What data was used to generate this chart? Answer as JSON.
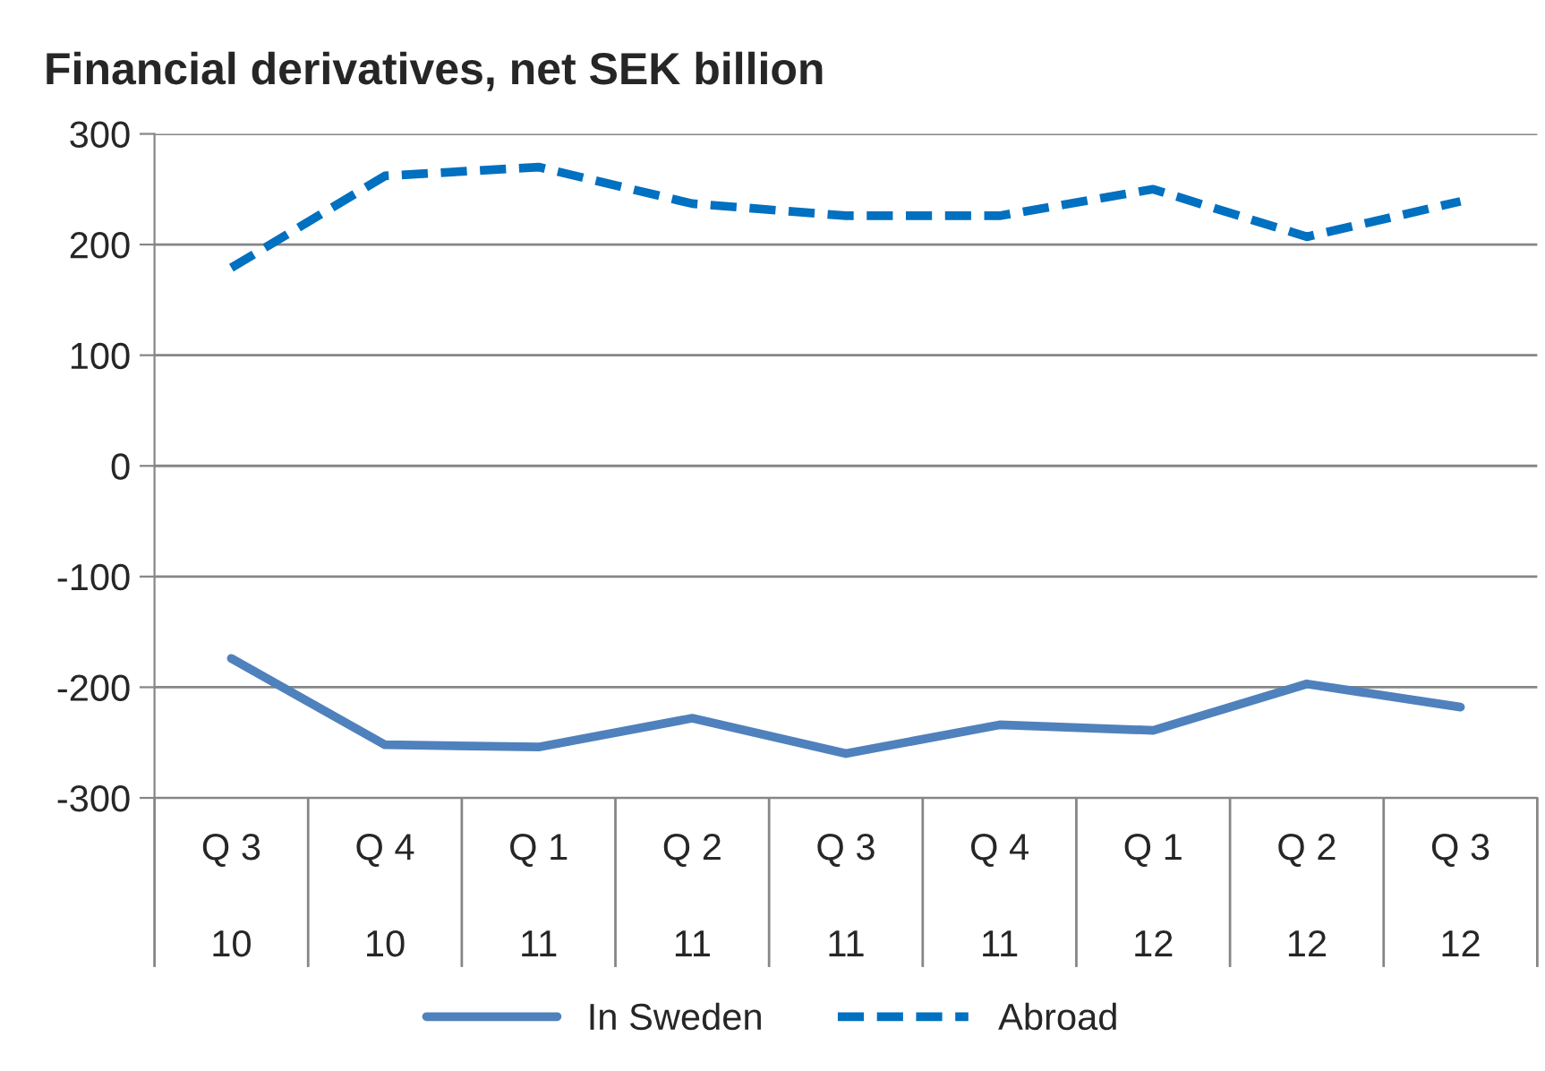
{
  "chart_data": {
    "type": "line",
    "title": "Financial derivatives, net SEK billion",
    "categories": [
      "Q 3\n\n10",
      "Q 4\n\n10",
      "Q 1\n\n11",
      "Q 2\n\n11",
      "Q 3\n\n11",
      "Q 4\n\n11",
      "Q 1\n\n12",
      "Q 2\n\n12",
      "Q 3\n\n12"
    ],
    "series": [
      {
        "name": "In Sweden",
        "color": "#4f81bd",
        "line_style": "solid",
        "values": [
          -174,
          -252,
          -254,
          -228,
          -260,
          -234,
          -239,
          -197,
          -218
        ]
      },
      {
        "name": "Abroad",
        "color": "#0070c0",
        "line_style": "dashed",
        "values": [
          179,
          262,
          270,
          237,
          226,
          226,
          250,
          207,
          239
        ]
      }
    ],
    "ylim": [
      -300,
      300
    ],
    "yticks": [
      -300,
      -200,
      -100,
      0,
      100,
      200,
      300
    ],
    "grid": "y",
    "legend": "bottom",
    "marker": "none"
  }
}
